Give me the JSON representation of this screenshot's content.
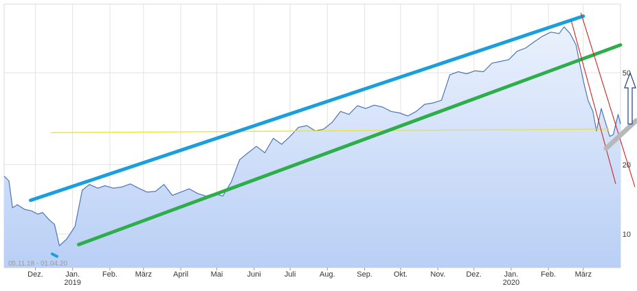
{
  "chart_data": {
    "type": "line",
    "title": "",
    "xlabel": "",
    "ylabel": "",
    "date_range_label": "05.11.18 - 01.04.20",
    "y_scale": "log",
    "y_ticks": [
      10,
      20,
      50
    ],
    "ylim": [
      6,
      90
    ],
    "grid": true,
    "colors": {
      "price_line": "#4a74b8",
      "area_top": "#eaf1fd",
      "area_bottom": "#b9cff5",
      "upper_channel": "#1a9fdc",
      "lower_channel": "#2eae4a",
      "horizontal_line": "#e8e23a",
      "crash_lines": "#d42020",
      "support_arrow": "#b8b8b8",
      "up_arrow": "#1f3d8a"
    },
    "x_ticks": [
      {
        "date": "2018-12-01",
        "label": "Dez.",
        "year": ""
      },
      {
        "date": "2019-01-01",
        "label": "Jan.",
        "year": "2019"
      },
      {
        "date": "2019-02-01",
        "label": "Feb.",
        "year": ""
      },
      {
        "date": "2019-03-01",
        "label": "März",
        "year": ""
      },
      {
        "date": "2019-04-01",
        "label": "April",
        "year": ""
      },
      {
        "date": "2019-05-01",
        "label": "Mai",
        "year": ""
      },
      {
        "date": "2019-06-01",
        "label": "Juni",
        "year": ""
      },
      {
        "date": "2019-07-01",
        "label": "Juli",
        "year": ""
      },
      {
        "date": "2019-08-01",
        "label": "Aug.",
        "year": ""
      },
      {
        "date": "2019-09-01",
        "label": "Sep.",
        "year": ""
      },
      {
        "date": "2019-10-01",
        "label": "Okt.",
        "year": ""
      },
      {
        "date": "2019-11-01",
        "label": "Nov.",
        "year": ""
      },
      {
        "date": "2019-12-01",
        "label": "Dez.",
        "year": ""
      },
      {
        "date": "2020-01-01",
        "label": "Jan.",
        "year": "2020"
      },
      {
        "date": "2020-02-01",
        "label": "Feb.",
        "year": ""
      },
      {
        "date": "2020-03-01",
        "label": "März",
        "year": ""
      }
    ],
    "series": [
      {
        "x": [
          "2018-11-05",
          "2018-11-09",
          "2018-11-12",
          "2018-11-16",
          "2018-11-22",
          "2018-11-28",
          "2018-12-03",
          "2018-12-07",
          "2018-12-12",
          "2018-12-17",
          "2018-12-21",
          "2018-12-24",
          "2018-12-27",
          "2019-01-03",
          "2019-01-09",
          "2019-01-15",
          "2019-01-22",
          "2019-01-28",
          "2019-02-04",
          "2019-02-11",
          "2019-02-18",
          "2019-02-25",
          "2019-03-04",
          "2019-03-11",
          "2019-03-18",
          "2019-03-25",
          "2019-04-01",
          "2019-04-08",
          "2019-04-15",
          "2019-04-22",
          "2019-04-29",
          "2019-05-06",
          "2019-05-13",
          "2019-05-20",
          "2019-05-27",
          "2019-06-03",
          "2019-06-10",
          "2019-06-17",
          "2019-06-24",
          "2019-07-01",
          "2019-07-08",
          "2019-07-15",
          "2019-07-22",
          "2019-07-29",
          "2019-08-05",
          "2019-08-12",
          "2019-08-19",
          "2019-08-26",
          "2019-09-02",
          "2019-09-09",
          "2019-09-16",
          "2019-09-23",
          "2019-09-30",
          "2019-10-07",
          "2019-10-14",
          "2019-10-21",
          "2019-10-28",
          "2019-11-04",
          "2019-11-11",
          "2019-11-18",
          "2019-11-25",
          "2019-12-02",
          "2019-12-09",
          "2019-12-16",
          "2019-12-23",
          "2019-12-30",
          "2020-01-06",
          "2020-01-13",
          "2020-01-20",
          "2020-01-27",
          "2020-02-03",
          "2020-02-10",
          "2020-02-14",
          "2020-02-19",
          "2020-02-24",
          "2020-02-27",
          "2020-03-02",
          "2020-03-05",
          "2020-03-09",
          "2020-03-12",
          "2020-03-16",
          "2020-03-19",
          "2020-03-23",
          "2020-03-26",
          "2020-03-30",
          "2020-04-01"
        ],
        "values": [
          17.8,
          17.0,
          13.0,
          13.4,
          12.8,
          12.6,
          12.2,
          12.4,
          11.6,
          11.0,
          8.9,
          9.2,
          9.5,
          10.8,
          15.5,
          16.4,
          15.8,
          16.2,
          15.8,
          16.0,
          16.5,
          15.8,
          15.2,
          15.3,
          16.4,
          14.7,
          15.2,
          15.7,
          15.0,
          14.6,
          15.0,
          14.6,
          16.8,
          21.0,
          22.5,
          24.0,
          22.5,
          26.0,
          24.5,
          26.5,
          29.0,
          29.5,
          28.0,
          28.5,
          30.5,
          34.0,
          33.0,
          36.0,
          35.0,
          36.2,
          35.5,
          34.0,
          33.5,
          32.5,
          34.0,
          36.5,
          37.0,
          38.0,
          49.0,
          50.5,
          49.5,
          51.0,
          50.5,
          55.0,
          56.0,
          57.0,
          62.0,
          64.0,
          68.0,
          72.0,
          75.0,
          74.0,
          79.0,
          74.0,
          66.0,
          55.0,
          44.0,
          38.0,
          34.0,
          28.0,
          35.0,
          31.0,
          26.5,
          27.0,
          33.0,
          30.0
        ]
      }
    ],
    "annotations": [
      {
        "type": "trendline",
        "name": "upper_channel",
        "from": {
          "x": "2018-11-27",
          "y": 14.0
        },
        "to": {
          "x": "2020-03-01",
          "y": 88.0
        }
      },
      {
        "type": "trendline",
        "name": "lower_channel",
        "from": {
          "x": "2019-01-06",
          "y": 9.0
        },
        "to": {
          "x": "2020-04-01",
          "y": 66.0
        }
      },
      {
        "type": "hline",
        "name": "horizontal_line",
        "from": {
          "x": "2018-12-14",
          "y": 27.5
        },
        "to": {
          "x": "2020-03-23",
          "y": 28.5
        }
      },
      {
        "type": "trendline",
        "name": "crash_line_1",
        "from": {
          "x": "2020-02-20",
          "y": 84.0
        },
        "to": {
          "x": "2020-03-28",
          "y": 16.5
        }
      },
      {
        "type": "trendline",
        "name": "crash_line_2",
        "from": {
          "x": "2020-02-28",
          "y": 91.0
        },
        "to": {
          "x": "2020-04-13",
          "y": 16.0
        }
      },
      {
        "type": "arrow",
        "name": "support_arrow",
        "from": {
          "x": "2020-03-20",
          "y": 23.5
        },
        "to": {
          "x": "2020-04-14",
          "y": 31.0
        }
      },
      {
        "type": "arrow",
        "name": "up_arrow",
        "from": {
          "x": "2020-04-09",
          "y": 30.0
        },
        "to": {
          "x": "2020-04-09",
          "y": 50.0
        }
      },
      {
        "type": "dash",
        "name": "blue_dash",
        "from": {
          "x": "2018-12-15",
          "y": 8.2
        },
        "to": {
          "x": "2018-12-19",
          "y": 8.0
        }
      }
    ]
  }
}
